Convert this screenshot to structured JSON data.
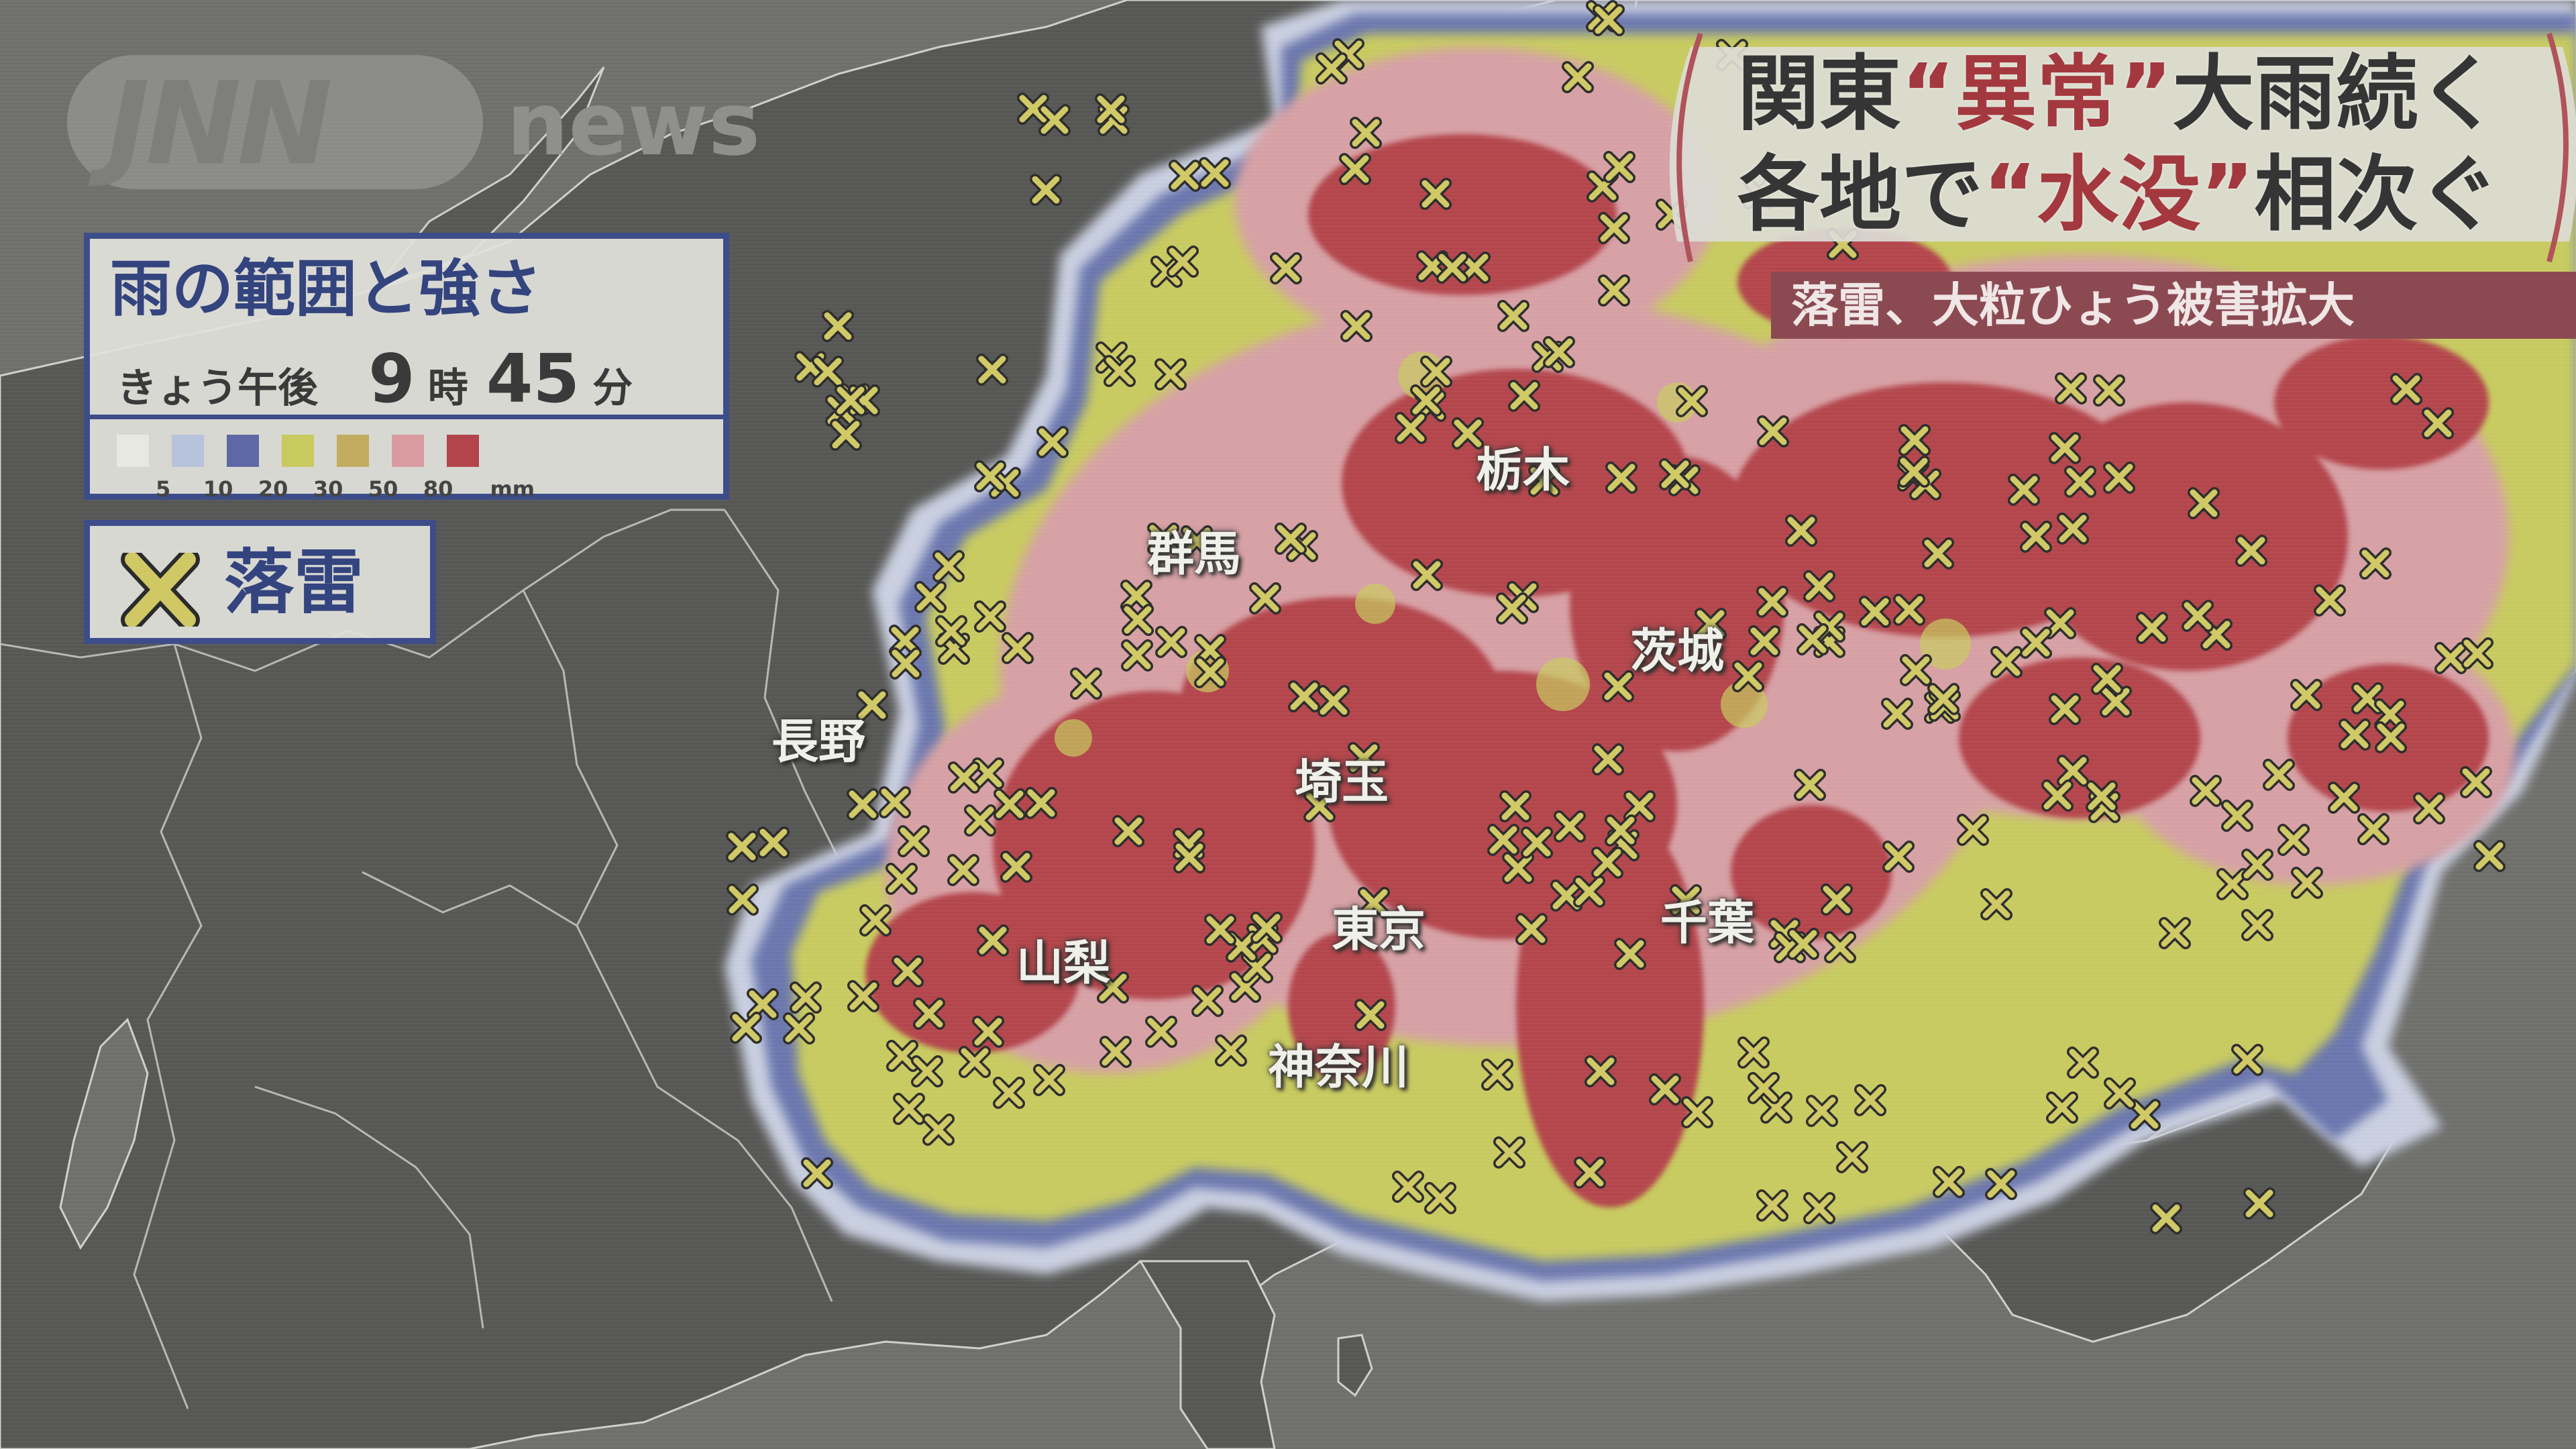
{
  "logo": {
    "primary": "JNN",
    "secondary": "news"
  },
  "legend": {
    "title": "雨の範囲と強さ",
    "time_prefix": "きょう午後",
    "hour": "9",
    "hour_unit": "時",
    "minute": "45",
    "minute_unit": "分",
    "scale": [
      {
        "label": "5",
        "color": "#e8e8e2"
      },
      {
        "label": "10",
        "color": "#b7c2dc"
      },
      {
        "label": "20",
        "color": "#5d68a4"
      },
      {
        "label": "30",
        "color": "#c7ca5e"
      },
      {
        "label": "50",
        "color": "#c2ac60"
      },
      {
        "label": "80",
        "color": "#d99aa0"
      },
      {
        "label": "mm",
        "color": "#b3444c"
      }
    ]
  },
  "lightning_legend": {
    "symbol": "lightning-x-icon",
    "label": "落雷",
    "color": "#cfc864"
  },
  "headline": {
    "line1_a": "関東",
    "line1_b": "“異常”",
    "line1_c": "大雨続く",
    "line2_a": "各地で",
    "line2_b": "“水没”",
    "line2_c": "相次ぐ"
  },
  "subtitle": "落雷、大粒ひょう被害拡大",
  "places": [
    {
      "key": "tochigi",
      "label": "栃木"
    },
    {
      "key": "gunma",
      "label": "群馬"
    },
    {
      "key": "ibaraki",
      "label": "茨城"
    },
    {
      "key": "nagano",
      "label": "長野"
    },
    {
      "key": "saitama",
      "label": "埼玉"
    },
    {
      "key": "tokyo",
      "label": "東京"
    },
    {
      "key": "chiba",
      "label": "千葉"
    },
    {
      "key": "yamanashi",
      "label": "山梨"
    },
    {
      "key": "kanagawa",
      "label": "神奈川"
    }
  ],
  "colors": {
    "sea": "#6e6e6b",
    "land": "#565654",
    "heavy_rain": "#b3444c",
    "moderate_rain": "#c7ca5e",
    "light_rain": "#5d68a4",
    "accent_red": "#a3383f",
    "legend_border": "#3d4d8a"
  }
}
